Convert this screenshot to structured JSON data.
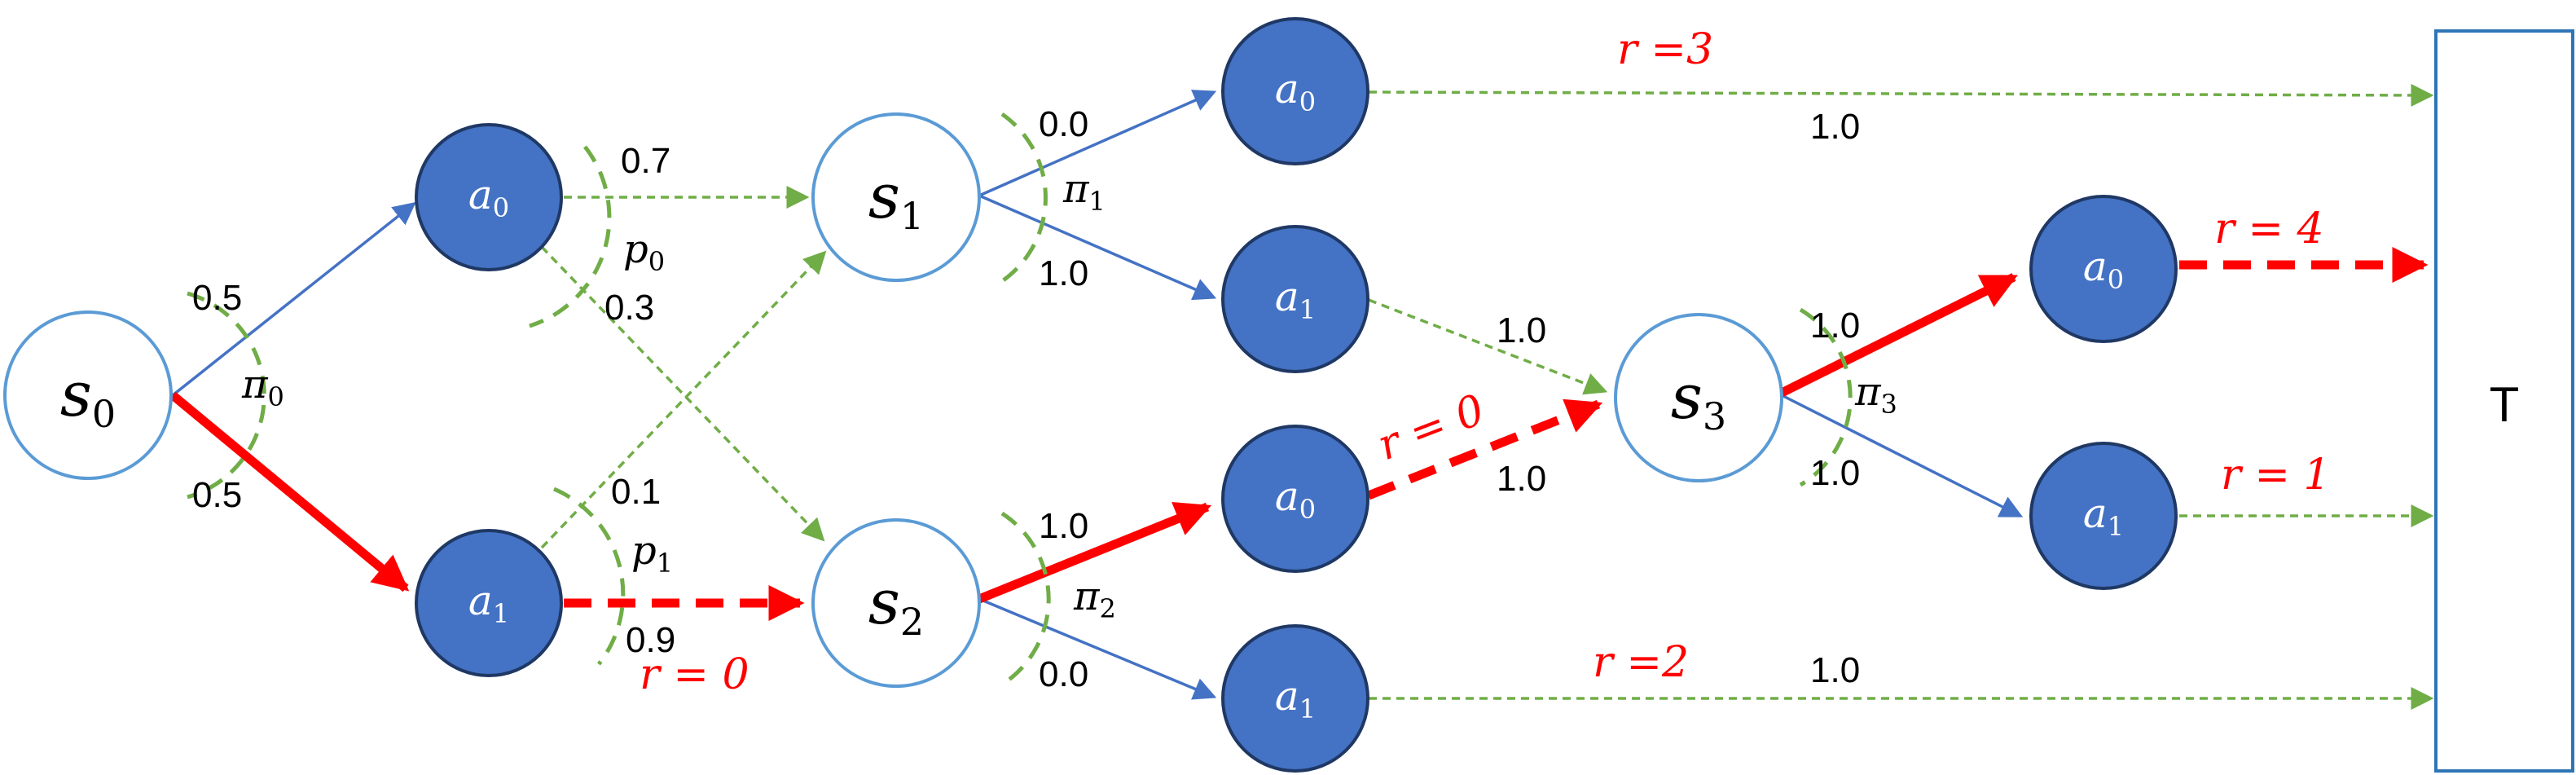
{
  "colors": {
    "state_stroke": "#5b9bd5",
    "action_fill": "#4472c4",
    "action_stroke": "#1f3864",
    "policy_edge": "#4472c4",
    "transition_edge": "#70ad47",
    "highlight": "#ff0000",
    "terminal_stroke": "#2e75b6"
  },
  "states": {
    "s0": {
      "base": "s",
      "sub": "0"
    },
    "s1": {
      "base": "s",
      "sub": "1"
    },
    "s2": {
      "base": "s",
      "sub": "2"
    },
    "s3": {
      "base": "s",
      "sub": "3"
    }
  },
  "actions": {
    "s0_a0": {
      "base": "a",
      "sub": "0"
    },
    "s0_a1": {
      "base": "a",
      "sub": "1"
    },
    "s1_a0": {
      "base": "a",
      "sub": "0"
    },
    "s1_a1": {
      "base": "a",
      "sub": "1"
    },
    "s2_a0": {
      "base": "a",
      "sub": "0"
    },
    "s2_a1": {
      "base": "a",
      "sub": "1"
    },
    "s3_a0": {
      "base": "a",
      "sub": "0"
    },
    "s3_a1": {
      "base": "a",
      "sub": "1"
    }
  },
  "terminal": {
    "label": "T"
  },
  "policies": {
    "pi0": {
      "base": "π",
      "sub": "0"
    },
    "pi1": {
      "base": "π",
      "sub": "1"
    },
    "pi2": {
      "base": "π",
      "sub": "2"
    },
    "pi3": {
      "base": "π",
      "sub": "3"
    }
  },
  "transitions": {
    "p0": {
      "base": "p",
      "sub": "0"
    },
    "p1": {
      "base": "p",
      "sub": "1"
    }
  },
  "probabilities": {
    "s0_a0": "0.5",
    "s0_a1": "0.5",
    "s0a0_s1": "0.7",
    "s0a0_s2": "0.3",
    "s0a1_s1": "0.1",
    "s0a1_s2": "0.9",
    "s1_a0": "0.0",
    "s1_a1": "1.0",
    "s1a0_T": "1.0",
    "s1a1_s3": "1.0",
    "s2_a0": "1.0",
    "s2_a1": "0.0",
    "s2a0_s3": "1.0",
    "s2a1_T": "1.0",
    "s3_a0": "1.0",
    "s3_a1": "1.0"
  },
  "rewards": {
    "s0a1_s2": "r = 0",
    "s1a0_T": "r =3",
    "s2a0_s3": "r = 0",
    "s2a1_T": "r =2",
    "s3a0_T": "r = 4",
    "s3a1_T": "r = 1"
  }
}
